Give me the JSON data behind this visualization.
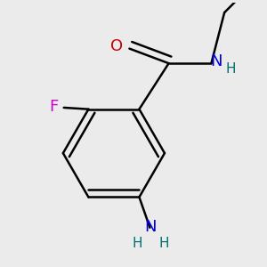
{
  "background_color": "#ebebeb",
  "line_color": "#000000",
  "bond_width": 1.8,
  "atom_colors": {
    "O": "#cc0000",
    "N": "#0000dd",
    "H": "#007070",
    "F": "#cc00cc"
  },
  "figsize": [
    3.0,
    3.0
  ],
  "dpi": 100
}
